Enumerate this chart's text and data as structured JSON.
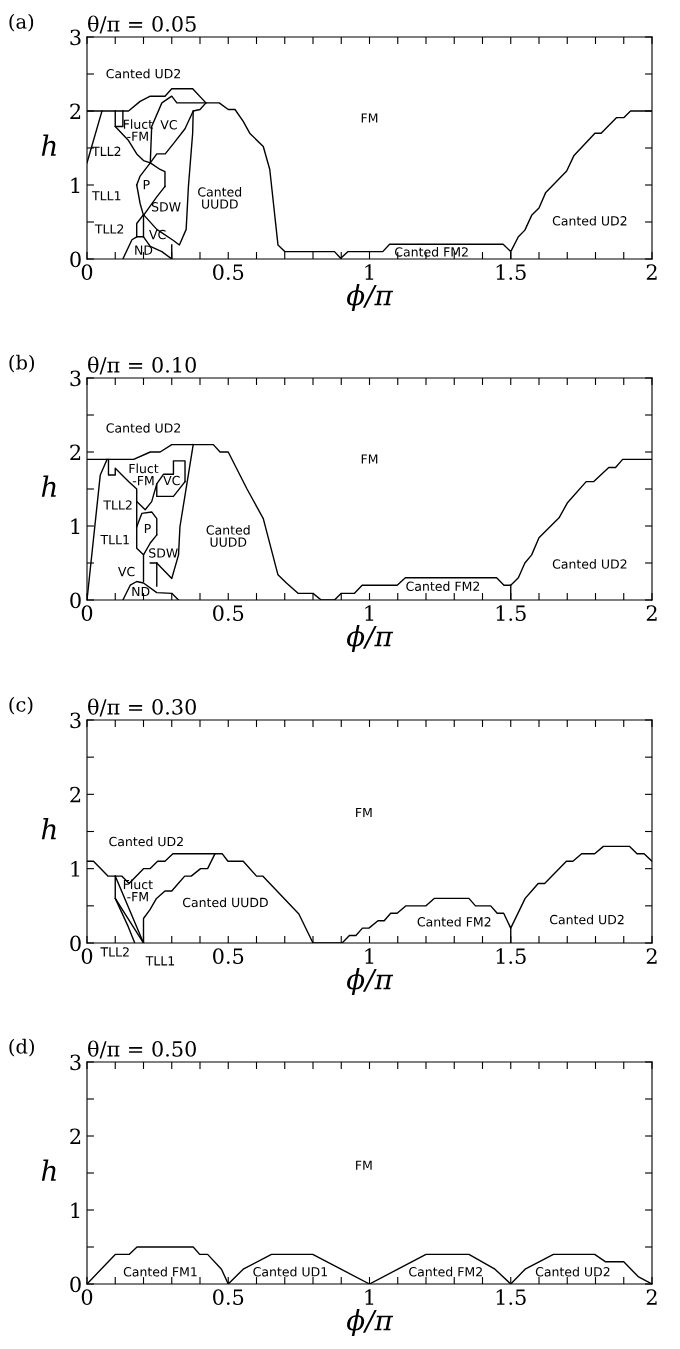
{
  "chart_data": [
    {
      "type": "line",
      "title": "θ/π = 0.05",
      "xlabel": "ϕ/π",
      "ylabel": "h",
      "grid": false,
      "marker": "none",
      "line_style": "solid",
      "xlim": [
        0,
        2
      ],
      "ylim": [
        0,
        3
      ],
      "xticks": [
        0,
        {
          "value": 0.1,
          "label": null
        },
        {
          "value": 0.2,
          "label": null
        },
        {
          "value": 0.3,
          "label": null
        },
        {
          "value": 0.4,
          "label": null
        },
        0.5,
        {
          "value": 0.6,
          "label": null
        },
        {
          "value": 0.7,
          "label": null
        },
        {
          "value": 0.8,
          "label": null
        },
        {
          "value": 0.9,
          "label": null
        },
        1,
        {
          "value": 1.1,
          "label": null
        },
        {
          "value": 1.2,
          "label": null
        },
        {
          "value": 1.3,
          "label": null
        },
        {
          "value": 1.4,
          "label": null
        },
        1.5,
        {
          "value": 1.6,
          "label": null
        },
        {
          "value": 1.7,
          "label": null
        },
        {
          "value": 1.8,
          "label": null
        },
        {
          "value": 1.9,
          "label": null
        },
        2
      ],
      "yticks": [
        0,
        {
          "value": 0.5,
          "label": null
        },
        1,
        {
          "value": 1.5,
          "label": null
        },
        2,
        {
          "value": 2.5,
          "label": null
        },
        3
      ],
      "series": [
        {
          "color": "#000000",
          "x": [
            0,
            0.127,
            0.147,
            0.188,
            0.224,
            0.276,
            0.3,
            0.374,
            0.421,
            0.468,
            0.5,
            0.524,
            0.553,
            0.576,
            0.624,
            0.647,
            0.676,
            0.7,
            0.876,
            0.898,
            0.924,
            1.047,
            1.071,
            1.473,
            1.5,
            1.5,
            1.5,
            1.527,
            1.55,
            1.574,
            1.6,
            1.624,
            1.698,
            1.724,
            1.798,
            1.82,
            1.874,
            1.9,
            1.924,
            2
          ],
          "values": [
            2,
            2,
            2,
            2.13,
            2.2,
            2.2,
            2.3,
            2.3,
            2.11,
            2.11,
            2.02,
            2.02,
            1.86,
            1.7,
            1.52,
            1.21,
            0.19,
            0.1,
            0.1,
            0.01,
            0.1,
            0.1,
            0.2,
            0.2,
            0.1,
            0,
            0.1,
            0.3,
            0.39,
            0.59,
            0.69,
            0.9,
            1.19,
            1.4,
            1.7,
            1.7,
            1.91,
            1.91,
            2,
            2
          ]
        },
        {
          "color": "#000000",
          "x": [
            0,
            0.053
          ],
          "values": [
            1.3,
            2
          ]
        },
        {
          "color": "#000000",
          "x": [
            0.1,
            0.1,
            0.127,
            0.127
          ],
          "values": [
            2,
            1.79,
            1.79,
            2
          ]
        },
        {
          "color": "#000000",
          "x": [
            0.1,
            0.147,
            0.176,
            0.2,
            0.224,
            0.247,
            0.277,
            0.306,
            0.347,
            0.376,
            0.4,
            0.421
          ],
          "values": [
            1.79,
            1.6,
            1.42,
            1.33,
            1.3,
            1.42,
            1.42,
            1.56,
            1.76,
            2,
            2.02,
            2.11
          ]
        },
        {
          "color": "#000000",
          "x": [
            0.224,
            0.229,
            0.265,
            0.3,
            0.318,
            0.338,
            0.421
          ],
          "values": [
            1.3,
            1.79,
            2.11,
            2.2,
            2.11,
            2.11,
            2.11
          ]
        },
        {
          "color": "#000000",
          "x": [
            0.176,
            0.188,
            0.224,
            0.259,
            0.276,
            0.276
          ],
          "values": [
            1.0,
            1.12,
            1.3,
            1.21,
            1.18,
            0.98
          ]
        },
        {
          "color": "#000000",
          "x": [
            0.176,
            0.188,
            0.2,
            0.247,
            0.276
          ],
          "values": [
            1.0,
            0.75,
            0.59,
            0.84,
            0.98
          ]
        },
        {
          "color": "#000000",
          "x": [
            0.176,
            0.176,
            0.2,
            0.247,
            0.306,
            0.327,
            0.351,
            0.359,
            0.374,
            0.376
          ],
          "values": [
            0.3,
            0.48,
            0.6,
            0.4,
            0.25,
            0.19,
            0.4,
            0.98,
            1.7,
            2
          ]
        },
        {
          "color": "#000000",
          "x": [
            0.2,
            0.2
          ],
          "values": [
            0.3,
            0.59
          ]
        },
        {
          "color": "#000000",
          "x": [
            0.127,
            0.159,
            0.176,
            0.2,
            0.224,
            0.265,
            0.3
          ],
          "values": [
            0,
            0.26,
            0.3,
            0.3,
            0.17,
            0.1,
            0
          ]
        },
        {
          "color": "#000000",
          "x": [
            0.3,
            0.3
          ],
          "values": [
            0,
            0.19
          ]
        }
      ],
      "annotations": [
        "(a)",
        "Canted UD2",
        "Fluct\n-FM",
        "VC",
        "FM",
        "TLL2",
        "P",
        "TLL1",
        "SDW",
        "Canted\nUUDD",
        "TLL2",
        "VC",
        "ND",
        "Canted FM2",
        "Canted UD2"
      ]
    },
    {
      "type": "line",
      "title": "θ/π = 0.10",
      "xlabel": "ϕ/π",
      "ylabel": "h",
      "grid": false,
      "marker": "none",
      "line_style": "solid",
      "xlim": [
        0,
        2
      ],
      "ylim": [
        0,
        3
      ],
      "xticks": [
        0,
        {
          "value": 0.1,
          "label": null
        },
        {
          "value": 0.2,
          "label": null
        },
        {
          "value": 0.3,
          "label": null
        },
        {
          "value": 0.4,
          "label": null
        },
        0.5,
        {
          "value": 0.6,
          "label": null
        },
        {
          "value": 0.7,
          "label": null
        },
        {
          "value": 0.8,
          "label": null
        },
        {
          "value": 0.9,
          "label": null
        },
        1,
        {
          "value": 1.1,
          "label": null
        },
        {
          "value": 1.2,
          "label": null
        },
        {
          "value": 1.3,
          "label": null
        },
        {
          "value": 1.4,
          "label": null
        },
        1.5,
        {
          "value": 1.6,
          "label": null
        },
        {
          "value": 1.7,
          "label": null
        },
        {
          "value": 1.8,
          "label": null
        },
        {
          "value": 1.9,
          "label": null
        },
        2
      ],
      "yticks": [
        0,
        {
          "value": 0.5,
          "label": null
        },
        1,
        {
          "value": 1.5,
          "label": null
        },
        2,
        {
          "value": 2.5,
          "label": null
        },
        3
      ],
      "series": [
        {
          "color": "#000000",
          "x": [
            0,
            0.127,
            0.165,
            0.224,
            0.259,
            0.3,
            0.371,
            0.447,
            0.471,
            0.5,
            0.565,
            0.624,
            0.676,
            0.706,
            0.747,
            0.8,
            0.829,
            0.876,
            0.9,
            0.947,
            0.974,
            1.098,
            1.127,
            1.45,
            1.476,
            1.5,
            1.527,
            1.55,
            1.574,
            1.6,
            1.671,
            1.7,
            1.767,
            1.794,
            1.847,
            1.871,
            1.896,
            2
          ],
          "values": [
            1.9,
            1.9,
            1.9,
            2,
            2,
            2.1,
            2.1,
            2.1,
            2,
            2,
            1.51,
            1.1,
            0.34,
            0.23,
            0.09,
            0.09,
            0,
            0,
            0.09,
            0.09,
            0.2,
            0.2,
            0.3,
            0.3,
            0.2,
            0.2,
            0.3,
            0.5,
            0.61,
            0.84,
            1.11,
            1.31,
            1.6,
            1.6,
            1.79,
            1.79,
            1.9,
            1.9
          ]
        },
        {
          "color": "#000000",
          "x": [
            0,
            0.047,
            0.071
          ],
          "values": [
            0,
            1.69,
            1.9
          ]
        },
        {
          "color": "#000000",
          "x": [
            0.076,
            0.076,
            0.1,
            0.1,
            0.147,
            0.176,
            0.176,
            0.176,
            0.2,
            0.224,
            0.247
          ],
          "values": [
            1.9,
            1.69,
            1.69,
            1.78,
            1.6,
            1.5,
            1.0,
            0.7,
            0.61,
            0.77,
            0.88
          ]
        },
        {
          "color": "#000000",
          "x": [
            0.176,
            0.194,
            0.229,
            0.247,
            0.247
          ],
          "values": [
            0.99,
            1.17,
            1.19,
            1.1,
            0.88
          ]
        },
        {
          "color": "#000000",
          "x": [
            0.176,
            0.206,
            0.229,
            0.247,
            0.271,
            0.306,
            0.306,
            0.347,
            0.347
          ],
          "values": [
            1.33,
            1.22,
            1.33,
            1.57,
            1.7,
            1.7,
            1.88,
            1.88,
            1.6
          ]
        },
        {
          "color": "#000000",
          "x": [
            0.247,
            0.247,
            0.306,
            0.347
          ],
          "values": [
            1.57,
            1.4,
            1.4,
            1.6
          ]
        },
        {
          "color": "#000000",
          "x": [
            1.5,
            1.5
          ],
          "values": [
            0,
            0.2
          ]
        },
        {
          "color": "#000000",
          "x": [
            0.224,
            0.247,
            0.3,
            0.324,
            0.329,
            0.376
          ],
          "values": [
            0.5,
            0.5,
            0.29,
            0.61,
            0.99,
            2.1
          ]
        },
        {
          "color": "#000000",
          "x": [
            0.247,
            0.247
          ],
          "values": [
            0.5,
            0.19
          ]
        },
        {
          "color": "#000000",
          "x": [
            0.2,
            0.2
          ],
          "values": [
            0.61,
            0.25
          ]
        },
        {
          "color": "#000000",
          "x": [
            0.127,
            0.153,
            0.176,
            0.2,
            0.247,
            0.3,
            0.324
          ],
          "values": [
            0,
            0.2,
            0.25,
            0.23,
            0.1,
            0.09,
            0
          ]
        }
      ],
      "annotations": [
        "(b)",
        "Canted UD2",
        "Fluct\n-FM",
        "VC",
        "FM",
        "TLL2",
        "P",
        "TLL1",
        "SDW",
        "Canted\nUUDD",
        "VC",
        "ND",
        "Canted FM2",
        "Canted UD2"
      ]
    },
    {
      "type": "line",
      "title": "θ/π = 0.30",
      "xlabel": "ϕ/π",
      "ylabel": "h",
      "grid": false,
      "marker": "none",
      "line_style": "solid",
      "xlim": [
        0,
        2
      ],
      "ylim": [
        0,
        3
      ],
      "xticks": [
        0,
        {
          "value": 0.1,
          "label": null
        },
        {
          "value": 0.2,
          "label": null
        },
        {
          "value": 0.3,
          "label": null
        },
        {
          "value": 0.4,
          "label": null
        },
        0.5,
        {
          "value": 0.6,
          "label": null
        },
        {
          "value": 0.7,
          "label": null
        },
        {
          "value": 0.8,
          "label": null
        },
        {
          "value": 0.9,
          "label": null
        },
        1,
        {
          "value": 1.1,
          "label": null
        },
        {
          "value": 1.2,
          "label": null
        },
        {
          "value": 1.3,
          "label": null
        },
        {
          "value": 1.4,
          "label": null
        },
        1.5,
        {
          "value": 1.6,
          "label": null
        },
        {
          "value": 1.7,
          "label": null
        },
        {
          "value": 1.8,
          "label": null
        },
        {
          "value": 1.9,
          "label": null
        },
        2
      ],
      "yticks": [
        0,
        {
          "value": 0.5,
          "label": null
        },
        1,
        {
          "value": 1.5,
          "label": null
        },
        2,
        {
          "value": 2.5,
          "label": null
        },
        3
      ],
      "series": [
        {
          "color": "#000000",
          "x": [
            0,
            0.023,
            0.074,
            0.123,
            0.149,
            0.2,
            0.223,
            0.25,
            0.276,
            0.304,
            0.479,
            0.499,
            0.553,
            0.6,
            0.622,
            0.75,
            0.8,
            0.903,
            0.929,
            0.952,
            0.975,
            0.998,
            1.03,
            1.052,
            1.075,
            1.098,
            1.129,
            1.2,
            1.229,
            1.352,
            1.375,
            1.429,
            1.452,
            1.475,
            1.5,
            1.551,
            1.574,
            1.597,
            1.62,
            1.697,
            1.72,
            1.751,
            1.797,
            1.828,
            1.92,
            1.947,
            1.972,
            2
          ],
          "values": [
            1.1,
            1.1,
            0.9,
            0.9,
            0.8,
            1.0,
            1.0,
            1.1,
            1.1,
            1.2,
            1.2,
            1.1,
            1.1,
            0.9,
            0.9,
            0.39,
            0,
            0,
            0.1,
            0.1,
            0.2,
            0.2,
            0.3,
            0.3,
            0.4,
            0.4,
            0.5,
            0.5,
            0.6,
            0.6,
            0.5,
            0.5,
            0.4,
            0.4,
            0.2,
            0.6,
            0.7,
            0.8,
            0.8,
            1.1,
            1.1,
            1.2,
            1.2,
            1.3,
            1.3,
            1.2,
            1.2,
            1.1
          ]
        },
        {
          "color": "#000000",
          "x": [
            1.5,
            1.5
          ],
          "values": [
            0,
            0.2
          ]
        },
        {
          "color": "#000000",
          "x": [
            0.2,
            0.2,
            0.223,
            0.246,
            0.276,
            0.3,
            0.323,
            0.346,
            0.369,
            0.402,
            0.427,
            0.453
          ],
          "values": [
            0,
            0.33,
            0.45,
            0.6,
            0.7,
            0.7,
            0.8,
            0.9,
            0.9,
            1.0,
            1.0,
            1.2
          ]
        },
        {
          "color": "#000000",
          "x": [
            0.1,
            0.1,
            0.146,
            0.169
          ],
          "values": [
            0.9,
            0.6,
            0.22,
            0
          ]
        },
        {
          "color": "#000000",
          "x": [
            0.1,
            0.2
          ],
          "values": [
            0.6,
            0
          ]
        },
        {
          "color": "#000000",
          "x": [
            0.1,
            0.2
          ],
          "values": [
            0.9,
            0
          ]
        }
      ],
      "annotations": [
        "(c)",
        "Canted UD2",
        "Fluct\n-FM",
        "FM",
        "Canted UUDD",
        "Canted FM2",
        "Canted UD2",
        "TLL2",
        "TLL1"
      ]
    },
    {
      "type": "line",
      "title": "θ/π = 0.50",
      "xlabel": "ϕ/π",
      "ylabel": "h",
      "grid": false,
      "marker": "none",
      "line_style": "solid",
      "xlim": [
        0,
        2
      ],
      "ylim": [
        0,
        3
      ],
      "xticks": [
        0,
        {
          "value": 0.1,
          "label": null
        },
        {
          "value": 0.2,
          "label": null
        },
        {
          "value": 0.3,
          "label": null
        },
        {
          "value": 0.4,
          "label": null
        },
        0.5,
        {
          "value": 0.6,
          "label": null
        },
        {
          "value": 0.7,
          "label": null
        },
        {
          "value": 0.8,
          "label": null
        },
        {
          "value": 0.9,
          "label": null
        },
        1,
        {
          "value": 1.1,
          "label": null
        },
        {
          "value": 1.2,
          "label": null
        },
        {
          "value": 1.3,
          "label": null
        },
        {
          "value": 1.4,
          "label": null
        },
        1.5,
        {
          "value": 1.6,
          "label": null
        },
        {
          "value": 1.7,
          "label": null
        },
        {
          "value": 1.8,
          "label": null
        },
        {
          "value": 1.9,
          "label": null
        },
        2
      ],
      "yticks": [
        0,
        {
          "value": 0.5,
          "label": null
        },
        1,
        {
          "value": 1.5,
          "label": null
        },
        2,
        {
          "value": 2.5,
          "label": null
        },
        3
      ],
      "series": [
        {
          "color": "#000000",
          "x": [
            0,
            0.1,
            0.149,
            0.177,
            0.376,
            0.399,
            0.427,
            0.476,
            0.5,
            0.553,
            0.653,
            0.799,
            1,
            1.2,
            1.352,
            1.444,
            1.5,
            1.551,
            1.651,
            1.797,
            1.836,
            1.9,
            1.951,
            2
          ],
          "values": [
            0,
            0.4,
            0.4,
            0.5,
            0.5,
            0.4,
            0.4,
            0.2,
            0,
            0.2,
            0.4,
            0.4,
            0,
            0.4,
            0.4,
            0.2,
            0,
            0.2,
            0.4,
            0.4,
            0.3,
            0.3,
            0.1,
            0
          ]
        }
      ],
      "annotations": [
        "(d)",
        "Canted FM1",
        "Canted UD1",
        "FM",
        "Canted FM2",
        "Canted UD2"
      ]
    }
  ]
}
